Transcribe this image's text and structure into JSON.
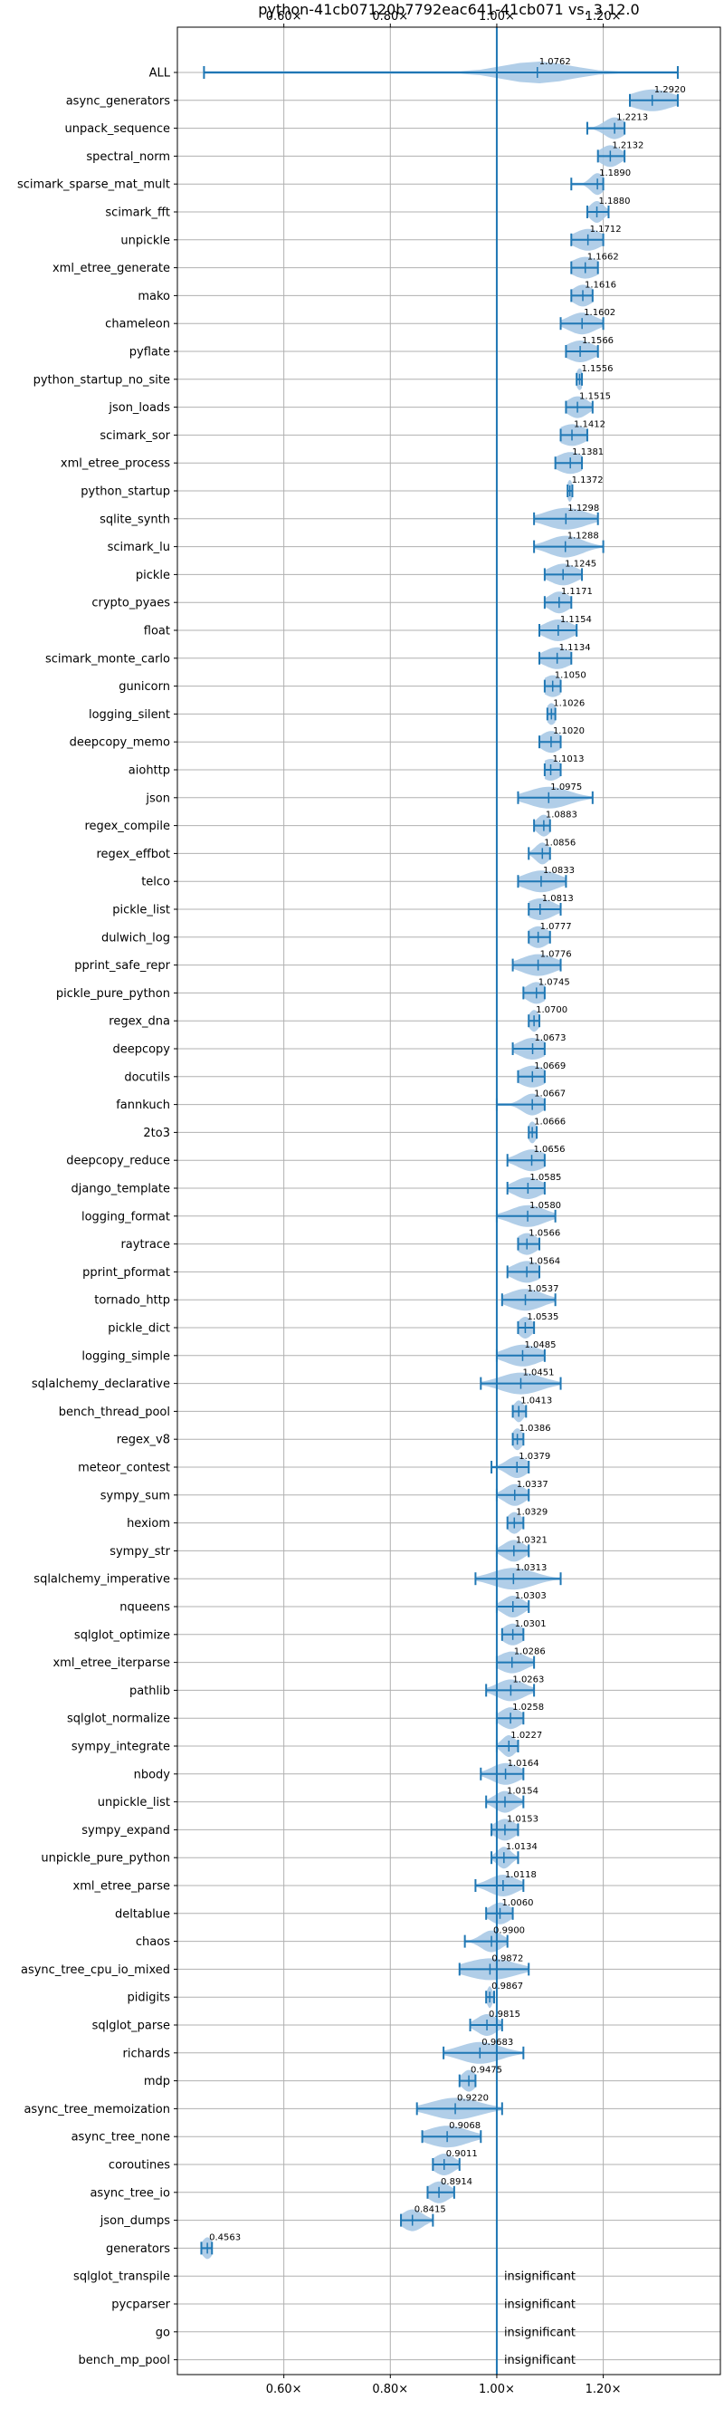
{
  "chart_data": {
    "type": "violin",
    "title": "python-41cb07120b7792eac641-41cb071 vs. 3.12.0",
    "xlim": [
      0.4,
      1.42
    ],
    "x_ticks": [
      {
        "value": 0.6,
        "label": "0.60×"
      },
      {
        "value": 0.8,
        "label": "0.80×"
      },
      {
        "value": 1.0,
        "label": "1.00×"
      },
      {
        "value": 1.2,
        "label": "1.20×"
      }
    ],
    "reference_line": 1.0,
    "grid": true,
    "colors": {
      "violin": "#a9c9e6",
      "whisker": "#1f77b4",
      "refline": "#1f77b4",
      "grid": "#b0b0b0"
    },
    "insignificant_text": "insignificant",
    "benchmarks": [
      {
        "name": "ALL",
        "value": 1.0762,
        "label": "1.0762",
        "lo": 0.45,
        "hi": 1.34,
        "spread": 0.1
      },
      {
        "name": "async_generators",
        "value": 1.292,
        "label": "1.2920",
        "lo": 1.25,
        "hi": 1.34,
        "spread": 0.06
      },
      {
        "name": "unpack_sequence",
        "value": 1.2213,
        "label": "1.2213",
        "lo": 1.17,
        "hi": 1.24,
        "spread": 0.03
      },
      {
        "name": "spectral_norm",
        "value": 1.2132,
        "label": "1.2132",
        "lo": 1.19,
        "hi": 1.24,
        "spread": 0.03
      },
      {
        "name": "scimark_sparse_mat_mult",
        "value": 1.189,
        "label": "1.1890",
        "lo": 1.14,
        "hi": 1.2,
        "spread": 0.02
      },
      {
        "name": "scimark_fft",
        "value": 1.188,
        "label": "1.1880",
        "lo": 1.17,
        "hi": 1.21,
        "spread": 0.02
      },
      {
        "name": "unpickle",
        "value": 1.1712,
        "label": "1.1712",
        "lo": 1.14,
        "hi": 1.2,
        "spread": 0.04
      },
      {
        "name": "xml_etree_generate",
        "value": 1.1662,
        "label": "1.1662",
        "lo": 1.14,
        "hi": 1.19,
        "spread": 0.04
      },
      {
        "name": "mako",
        "value": 1.1616,
        "label": "1.1616",
        "lo": 1.14,
        "hi": 1.18,
        "spread": 0.03
      },
      {
        "name": "chameleon",
        "value": 1.1602,
        "label": "1.1602",
        "lo": 1.12,
        "hi": 1.2,
        "spread": 0.04
      },
      {
        "name": "pyflate",
        "value": 1.1566,
        "label": "1.1566",
        "lo": 1.13,
        "hi": 1.19,
        "spread": 0.04
      },
      {
        "name": "python_startup_no_site",
        "value": 1.1556,
        "label": "1.1556",
        "lo": 1.15,
        "hi": 1.16,
        "spread": 0.01
      },
      {
        "name": "json_loads",
        "value": 1.1515,
        "label": "1.1515",
        "lo": 1.13,
        "hi": 1.18,
        "spread": 0.03
      },
      {
        "name": "scimark_sor",
        "value": 1.1412,
        "label": "1.1412",
        "lo": 1.12,
        "hi": 1.17,
        "spread": 0.04
      },
      {
        "name": "xml_etree_process",
        "value": 1.1381,
        "label": "1.1381",
        "lo": 1.11,
        "hi": 1.16,
        "spread": 0.04
      },
      {
        "name": "python_startup",
        "value": 1.1372,
        "label": "1.1372",
        "lo": 1.133,
        "hi": 1.142,
        "spread": 0.008
      },
      {
        "name": "sqlite_synth",
        "value": 1.1298,
        "label": "1.1298",
        "lo": 1.07,
        "hi": 1.19,
        "spread": 0.06
      },
      {
        "name": "scimark_lu",
        "value": 1.1288,
        "label": "1.1288",
        "lo": 1.07,
        "hi": 1.2,
        "spread": 0.05
      },
      {
        "name": "pickle",
        "value": 1.1245,
        "label": "1.1245",
        "lo": 1.09,
        "hi": 1.16,
        "spread": 0.04
      },
      {
        "name": "crypto_pyaes",
        "value": 1.1171,
        "label": "1.1171",
        "lo": 1.09,
        "hi": 1.14,
        "spread": 0.03
      },
      {
        "name": "float",
        "value": 1.1154,
        "label": "1.1154",
        "lo": 1.08,
        "hi": 1.15,
        "spread": 0.04
      },
      {
        "name": "scimark_monte_carlo",
        "value": 1.1134,
        "label": "1.1134",
        "lo": 1.08,
        "hi": 1.14,
        "spread": 0.04
      },
      {
        "name": "gunicorn",
        "value": 1.105,
        "label": "1.1050",
        "lo": 1.09,
        "hi": 1.12,
        "spread": 0.03
      },
      {
        "name": "logging_silent",
        "value": 1.1026,
        "label": "1.1026",
        "lo": 1.095,
        "hi": 1.11,
        "spread": 0.015
      },
      {
        "name": "deepcopy_memo",
        "value": 1.102,
        "label": "1.1020",
        "lo": 1.08,
        "hi": 1.12,
        "spread": 0.03
      },
      {
        "name": "aiohttp",
        "value": 1.1013,
        "label": "1.1013",
        "lo": 1.09,
        "hi": 1.12,
        "spread": 0.03
      },
      {
        "name": "json",
        "value": 1.0975,
        "label": "1.0975",
        "lo": 1.04,
        "hi": 1.18,
        "spread": 0.06
      },
      {
        "name": "regex_compile",
        "value": 1.0883,
        "label": "1.0883",
        "lo": 1.07,
        "hi": 1.1,
        "spread": 0.02
      },
      {
        "name": "regex_effbot",
        "value": 1.0856,
        "label": "1.0856",
        "lo": 1.06,
        "hi": 1.1,
        "spread": 0.02
      },
      {
        "name": "telco",
        "value": 1.0833,
        "label": "1.0833",
        "lo": 1.04,
        "hi": 1.13,
        "spread": 0.05
      },
      {
        "name": "pickle_list",
        "value": 1.0813,
        "label": "1.0813",
        "lo": 1.06,
        "hi": 1.12,
        "spread": 0.04
      },
      {
        "name": "dulwich_log",
        "value": 1.0777,
        "label": "1.0777",
        "lo": 1.06,
        "hi": 1.1,
        "spread": 0.03
      },
      {
        "name": "pprint_safe_repr",
        "value": 1.0776,
        "label": "1.0776",
        "lo": 1.03,
        "hi": 1.12,
        "spread": 0.05
      },
      {
        "name": "pickle_pure_python",
        "value": 1.0745,
        "label": "1.0745",
        "lo": 1.05,
        "hi": 1.09,
        "spread": 0.03
      },
      {
        "name": "regex_dna",
        "value": 1.07,
        "label": "1.0700",
        "lo": 1.06,
        "hi": 1.08,
        "spread": 0.015
      },
      {
        "name": "deepcopy",
        "value": 1.0673,
        "label": "1.0673",
        "lo": 1.03,
        "hi": 1.09,
        "spread": 0.04
      },
      {
        "name": "docutils",
        "value": 1.0669,
        "label": "1.0669",
        "lo": 1.04,
        "hi": 1.09,
        "spread": 0.04
      },
      {
        "name": "fannkuch",
        "value": 1.0667,
        "label": "1.0667",
        "lo": 1.0,
        "hi": 1.09,
        "spread": 0.03
      },
      {
        "name": "2to3",
        "value": 1.0666,
        "label": "1.0666",
        "lo": 1.06,
        "hi": 1.075,
        "spread": 0.012
      },
      {
        "name": "deepcopy_reduce",
        "value": 1.0656,
        "label": "1.0656",
        "lo": 1.02,
        "hi": 1.09,
        "spread": 0.04
      },
      {
        "name": "django_template",
        "value": 1.0585,
        "label": "1.0585",
        "lo": 1.02,
        "hi": 1.09,
        "spread": 0.04
      },
      {
        "name": "logging_format",
        "value": 1.058,
        "label": "1.0580",
        "lo": 1.0,
        "hi": 1.11,
        "spread": 0.05
      },
      {
        "name": "raytrace",
        "value": 1.0566,
        "label": "1.0566",
        "lo": 1.04,
        "hi": 1.08,
        "spread": 0.03
      },
      {
        "name": "pprint_pformat",
        "value": 1.0564,
        "label": "1.0564",
        "lo": 1.02,
        "hi": 1.08,
        "spread": 0.04
      },
      {
        "name": "tornado_http",
        "value": 1.0537,
        "label": "1.0537",
        "lo": 1.01,
        "hi": 1.11,
        "spread": 0.05
      },
      {
        "name": "pickle_dict",
        "value": 1.0535,
        "label": "1.0535",
        "lo": 1.04,
        "hi": 1.07,
        "spread": 0.02
      },
      {
        "name": "logging_simple",
        "value": 1.0485,
        "label": "1.0485",
        "lo": 1.0,
        "hi": 1.09,
        "spread": 0.05
      },
      {
        "name": "sqlalchemy_declarative",
        "value": 1.0451,
        "label": "1.0451",
        "lo": 0.97,
        "hi": 1.12,
        "spread": 0.06
      },
      {
        "name": "bench_thread_pool",
        "value": 1.0413,
        "label": "1.0413",
        "lo": 1.03,
        "hi": 1.055,
        "spread": 0.015
      },
      {
        "name": "regex_v8",
        "value": 1.0386,
        "label": "1.0386",
        "lo": 1.03,
        "hi": 1.05,
        "spread": 0.015
      },
      {
        "name": "meteor_contest",
        "value": 1.0379,
        "label": "1.0379",
        "lo": 0.99,
        "hi": 1.06,
        "spread": 0.03
      },
      {
        "name": "sympy_sum",
        "value": 1.0337,
        "label": "1.0337",
        "lo": 1.0,
        "hi": 1.06,
        "spread": 0.03
      },
      {
        "name": "hexiom",
        "value": 1.0329,
        "label": "1.0329",
        "lo": 1.02,
        "hi": 1.05,
        "spread": 0.02
      },
      {
        "name": "sympy_str",
        "value": 1.0321,
        "label": "1.0321",
        "lo": 1.0,
        "hi": 1.06,
        "spread": 0.03
      },
      {
        "name": "sqlalchemy_imperative",
        "value": 1.0313,
        "label": "1.0313",
        "lo": 0.96,
        "hi": 1.12,
        "spread": 0.06
      },
      {
        "name": "nqueens",
        "value": 1.0303,
        "label": "1.0303",
        "lo": 1.0,
        "hi": 1.06,
        "spread": 0.03
      },
      {
        "name": "sqlglot_optimize",
        "value": 1.0301,
        "label": "1.0301",
        "lo": 1.01,
        "hi": 1.05,
        "spread": 0.03
      },
      {
        "name": "xml_etree_iterparse",
        "value": 1.0286,
        "label": "1.0286",
        "lo": 1.0,
        "hi": 1.07,
        "spread": 0.04
      },
      {
        "name": "pathlib",
        "value": 1.0263,
        "label": "1.0263",
        "lo": 0.98,
        "hi": 1.07,
        "spread": 0.04
      },
      {
        "name": "sqlglot_normalize",
        "value": 1.0258,
        "label": "1.0258",
        "lo": 1.0,
        "hi": 1.05,
        "spread": 0.03
      },
      {
        "name": "sympy_integrate",
        "value": 1.0227,
        "label": "1.0227",
        "lo": 1.0,
        "hi": 1.04,
        "spread": 0.02
      },
      {
        "name": "nbody",
        "value": 1.0164,
        "label": "1.0164",
        "lo": 0.97,
        "hi": 1.05,
        "spread": 0.04
      },
      {
        "name": "unpickle_list",
        "value": 1.0154,
        "label": "1.0154",
        "lo": 0.98,
        "hi": 1.05,
        "spread": 0.03
      },
      {
        "name": "sympy_expand",
        "value": 1.0153,
        "label": "1.0153",
        "lo": 0.99,
        "hi": 1.04,
        "spread": 0.03
      },
      {
        "name": "unpickle_pure_python",
        "value": 1.0134,
        "label": "1.0134",
        "lo": 0.99,
        "hi": 1.04,
        "spread": 0.02
      },
      {
        "name": "xml_etree_parse",
        "value": 1.0118,
        "label": "1.0118",
        "lo": 0.96,
        "hi": 1.05,
        "spread": 0.04
      },
      {
        "name": "deltablue",
        "value": 1.006,
        "label": "1.0060",
        "lo": 0.98,
        "hi": 1.03,
        "spread": 0.03
      },
      {
        "name": "chaos",
        "value": 0.99,
        "label": "0.9900",
        "lo": 0.94,
        "hi": 1.02,
        "spread": 0.03
      },
      {
        "name": "async_tree_cpu_io_mixed",
        "value": 0.9872,
        "label": "0.9872",
        "lo": 0.93,
        "hi": 1.06,
        "spread": 0.07
      },
      {
        "name": "pidigits",
        "value": 0.9867,
        "label": "0.9867",
        "lo": 0.98,
        "hi": 0.995,
        "spread": 0.008
      },
      {
        "name": "sqlglot_parse",
        "value": 0.9815,
        "label": "0.9815",
        "lo": 0.95,
        "hi": 1.01,
        "spread": 0.03
      },
      {
        "name": "richards",
        "value": 0.9683,
        "label": "0.9683",
        "lo": 0.9,
        "hi": 1.05,
        "spread": 0.06
      },
      {
        "name": "mdp",
        "value": 0.9475,
        "label": "0.9475",
        "lo": 0.93,
        "hi": 0.96,
        "spread": 0.02
      },
      {
        "name": "async_tree_memoization",
        "value": 0.922,
        "label": "0.9220",
        "lo": 0.85,
        "hi": 1.01,
        "spread": 0.07
      },
      {
        "name": "async_tree_none",
        "value": 0.9068,
        "label": "0.9068",
        "lo": 0.86,
        "hi": 0.97,
        "spread": 0.06
      },
      {
        "name": "coroutines",
        "value": 0.9011,
        "label": "0.9011",
        "lo": 0.88,
        "hi": 0.93,
        "spread": 0.03
      },
      {
        "name": "async_tree_io",
        "value": 0.8914,
        "label": "0.8914",
        "lo": 0.87,
        "hi": 0.92,
        "spread": 0.03
      },
      {
        "name": "json_dumps",
        "value": 0.8415,
        "label": "0.8415",
        "lo": 0.82,
        "hi": 0.88,
        "spread": 0.03
      },
      {
        "name": "generators",
        "value": 0.4563,
        "label": "0.4563",
        "lo": 0.445,
        "hi": 0.465,
        "spread": 0.015
      },
      {
        "name": "sqlglot_transpile",
        "insignificant": true
      },
      {
        "name": "pycparser",
        "insignificant": true
      },
      {
        "name": "go",
        "insignificant": true
      },
      {
        "name": "bench_mp_pool",
        "insignificant": true
      }
    ]
  }
}
